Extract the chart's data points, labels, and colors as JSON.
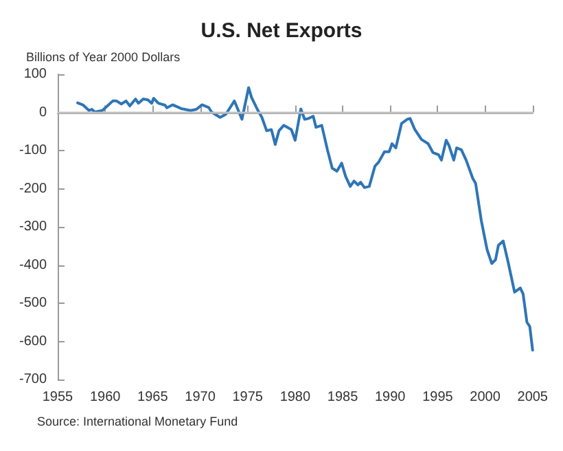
{
  "chart_data": {
    "type": "line",
    "title": "U.S. Net Exports",
    "ylabel": "Billions of Year 2000 Dollars",
    "annotations": [
      "Source: International Monetary Fund"
    ],
    "xlim": [
      1955,
      2005
    ],
    "xticks": [
      1955,
      1960,
      1965,
      1970,
      1975,
      1980,
      1985,
      1990,
      1995,
      2000,
      2005
    ],
    "ylim": [
      -700,
      100
    ],
    "yticks": [
      -700,
      -600,
      -500,
      -400,
      -300,
      -200,
      -100,
      0,
      100
    ],
    "grid": false,
    "marker": "none",
    "line_style": "solid",
    "ref_lines": [
      {
        "axis": "y",
        "value": 0,
        "label": null,
        "color": "#c0c0c0"
      }
    ],
    "series": [
      {
        "color": "#2e75b6",
        "x": [
          1957.1,
          1957.7,
          1958.3,
          1958.6,
          1958.9,
          1959.7,
          1960.1,
          1960.8,
          1961.2,
          1961.7,
          1962.2,
          1962.6,
          1963.2,
          1963.5,
          1964.0,
          1964.5,
          1964.9,
          1965.1,
          1965.6,
          1966.3,
          1966.5,
          1967.1,
          1968.0,
          1969.0,
          1969.6,
          1970.2,
          1970.9,
          1971.2,
          1972.1,
          1972.7,
          1973.6,
          1974.4,
          1975.1,
          1975.4,
          1976.0,
          1976.5,
          1977.0,
          1977.5,
          1977.9,
          1978.3,
          1978.8,
          1979.6,
          1980.0,
          1980.6,
          1981.0,
          1981.4,
          1981.9,
          1982.2,
          1982.8,
          1983.4,
          1983.9,
          1984.4,
          1984.9,
          1985.3,
          1985.8,
          1986.2,
          1986.6,
          1986.9,
          1987.3,
          1987.8,
          1988.4,
          1988.8,
          1989.4,
          1989.9,
          1990.2,
          1990.6,
          1991.2,
          1991.8,
          1992.1,
          1992.6,
          1993.3,
          1994.0,
          1994.5,
          1995.1,
          1995.4,
          1995.9,
          1996.2,
          1996.7,
          1997.0,
          1997.5,
          1998.0,
          1998.7,
          1999.0,
          1999.6,
          2000.2,
          2000.7,
          2001.1,
          2001.4,
          2001.9,
          2002.4,
          2003.1,
          2003.7,
          2004.0,
          2004.4,
          2004.7,
          2005.0
        ],
        "values": [
          25,
          19,
          5,
          8,
          1,
          5,
          14,
          30,
          30,
          22,
          30,
          17,
          35,
          24,
          35,
          33,
          24,
          37,
          24,
          19,
          12,
          20,
          10,
          5,
          8,
          20,
          13,
          1,
          -13,
          -5,
          30,
          -18,
          65,
          40,
          9,
          -13,
          -48,
          -45,
          -84,
          -48,
          -34,
          -45,
          -73,
          9,
          -18,
          -16,
          -10,
          -39,
          -34,
          -98,
          -146,
          -154,
          -133,
          -167,
          -194,
          -180,
          -190,
          -183,
          -197,
          -194,
          -141,
          -130,
          -103,
          -103,
          -82,
          -93,
          -29,
          -18,
          -16,
          -45,
          -71,
          -82,
          -105,
          -111,
          -125,
          -73,
          -87,
          -125,
          -93,
          -98,
          -125,
          -173,
          -186,
          -284,
          -359,
          -396,
          -386,
          -348,
          -337,
          -390,
          -471,
          -460,
          -476,
          -550,
          -561,
          -623
        ]
      }
    ]
  }
}
